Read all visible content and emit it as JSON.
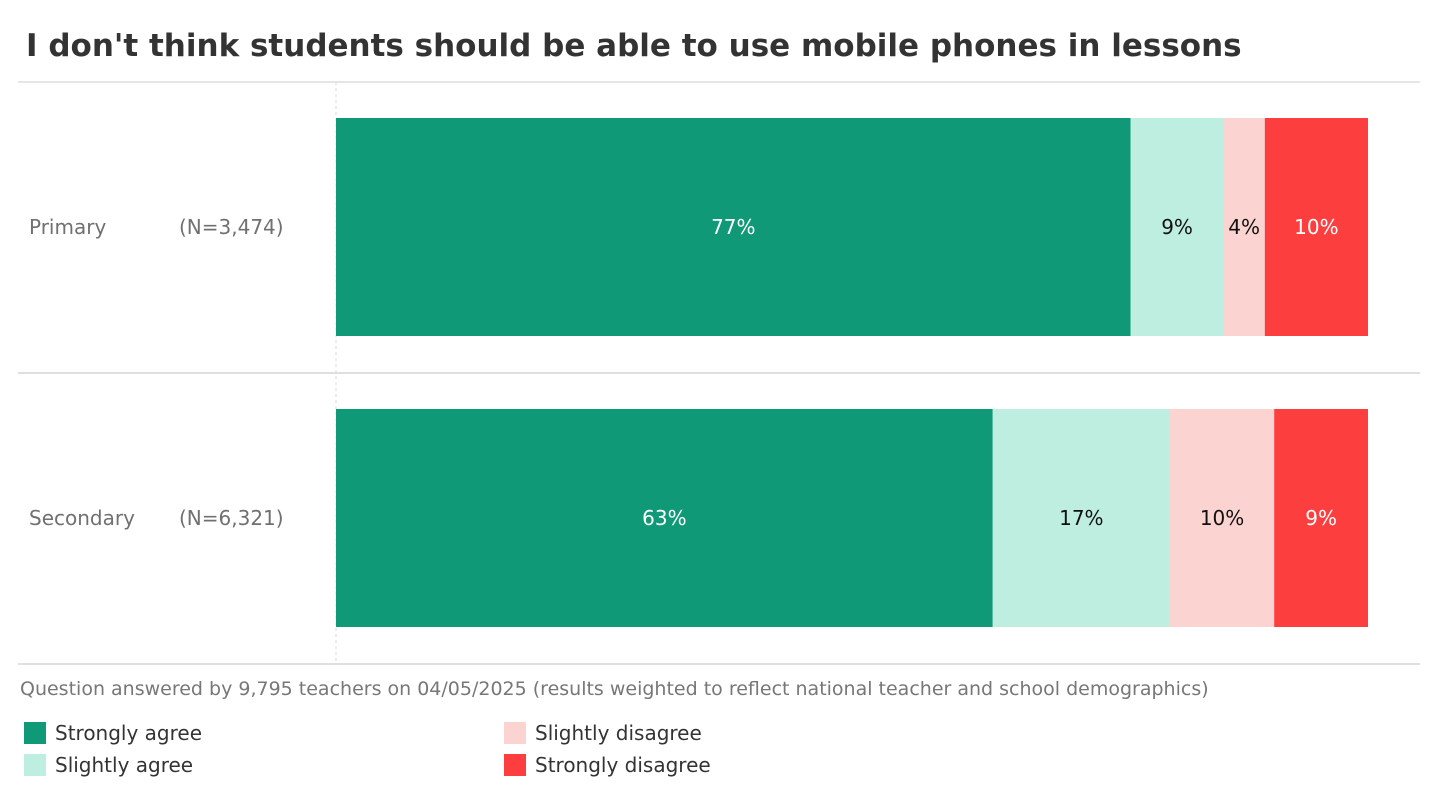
{
  "chart_data": {
    "type": "bar",
    "orientation": "horizontal",
    "stacked": true,
    "normalized_percent": true,
    "title": "I don't think students should be able to use mobile phones in lessons",
    "categories": [
      "Primary",
      "Secondary"
    ],
    "sample_sizes": [
      "(N=3,474)",
      "(N=6,321)"
    ],
    "series": [
      {
        "name": "Strongly agree",
        "values": [
          77,
          63
        ],
        "labels": [
          "77%",
          "63%"
        ],
        "color": "#0f9977",
        "label_color": "#ffffff"
      },
      {
        "name": "Slightly agree",
        "values": [
          9,
          17
        ],
        "labels": [
          "9%",
          "17%"
        ],
        "color": "#bdeee0",
        "label_color": "#111111"
      },
      {
        "name": "Slightly disagree",
        "values": [
          4,
          10
        ],
        "labels": [
          "4%",
          "10%"
        ],
        "color": "#fbd3d0",
        "label_color": "#111111"
      },
      {
        "name": "Strongly disagree",
        "values": [
          10,
          9
        ],
        "labels": [
          "10%",
          "9%"
        ],
        "color": "#fd3e3f",
        "label_color": "#ffffff"
      }
    ],
    "xlim": [
      0,
      100
    ],
    "grid": false,
    "legend_position": "bottom-left",
    "footnote": "Question answered by 9,795 teachers on 04/05/2025 (results weighted to reflect national teacher and school demographics)"
  }
}
